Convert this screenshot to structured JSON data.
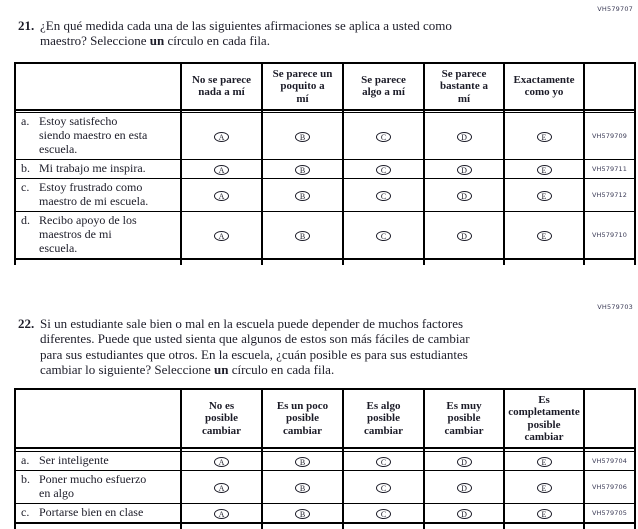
{
  "colors": {
    "text": "#1c1c28",
    "border": "#000000",
    "code_text": "#3a3a55"
  },
  "questions": [
    {
      "number": "21.",
      "code": "VH579707",
      "prompt_before": "¿En qué medida cada una de las siguientes afirmaciones se aplica a usted como\nmaestro? Seleccione ",
      "prompt_bold": "un",
      "prompt_after": " círculo en cada fila.",
      "table": {
        "column_headers": [
          "No se parece\nnada a mí",
          "Se parece un\npoquito a\nmí",
          "Se parece\nalgo a mí",
          "Se parece\nbastante a\nmí",
          "Exactamente\ncomo yo"
        ],
        "option_letters": [
          "A",
          "B",
          "C",
          "D",
          "E"
        ],
        "rows": [
          {
            "label": "a.",
            "text": "Estoy satisfecho\nsiendo maestro en esta\nescuela.",
            "code": "VH579709"
          },
          {
            "label": "b.",
            "text": "Mi trabajo me inspira.",
            "code": "VH579711"
          },
          {
            "label": "c.",
            "text": "Estoy frustrado como\nmaestro de mi escuela.",
            "code": "VH579712"
          },
          {
            "label": "d.",
            "text": "Recibo apoyo de los\nmaestros de mi\nescuela.",
            "code": "VH579710"
          }
        ]
      }
    },
    {
      "number": "22.",
      "code": "VH579703",
      "prompt_before": "Si un estudiante sale bien o mal en la escuela puede depender de muchos factores\ndiferentes. Puede que usted sienta que algunos de estos son más fáciles de cambiar\npara sus estudiantes que otros. En la escuela, ¿cuán posible es para sus estudiantes\ncambiar lo siguiente? Seleccione ",
      "prompt_bold": "un",
      "prompt_after": " círculo en cada fila.",
      "table": {
        "column_headers": [
          "No es\nposible\ncambiar",
          "Es un poco\nposible\ncambiar",
          "Es algo\nposible\ncambiar",
          "Es muy\nposible\ncambiar",
          "Es\ncompletamente\nposible\ncambiar"
        ],
        "option_letters": [
          "A",
          "B",
          "C",
          "D",
          "E"
        ],
        "rows": [
          {
            "label": "a.",
            "text": "Ser inteligente",
            "code": "VH579704"
          },
          {
            "label": "b.",
            "text": "Poner mucho esfuerzo\nen algo",
            "code": "VH579706"
          },
          {
            "label": "c.",
            "text": "Portarse bien en clase",
            "code": "VH579705"
          }
        ]
      }
    }
  ]
}
